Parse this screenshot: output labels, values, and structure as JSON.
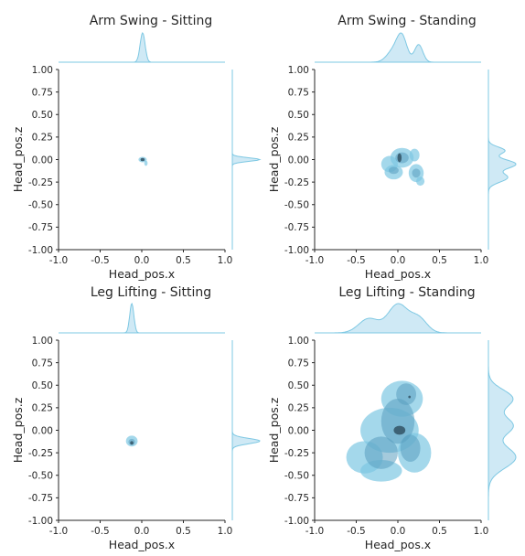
{
  "chart_data": [
    {
      "type": "kde-joint",
      "title": "Arm Swing - Sitting",
      "xlabel": "Head_pos.x",
      "ylabel": "Head_pos.z",
      "xlim": [
        -1.0,
        1.0
      ],
      "ylim": [
        -1.0,
        1.0
      ],
      "xticks": [
        "-1.0",
        "-0.5",
        "0.0",
        "0.5",
        "1.0"
      ],
      "yticks": [
        "1.00",
        "0.75",
        "0.50",
        "0.25",
        "0.00",
        "-0.25",
        "-0.50",
        "-0.75",
        "-1.00"
      ],
      "grid": false,
      "color": "#7ec8e3",
      "dark_color": "#3a5d70",
      "regions": [
        {
          "cx": 0.01,
          "cy": 0.0,
          "rx": 0.05,
          "ry": 0.03,
          "level": 1
        },
        {
          "cx": 0.05,
          "cy": -0.04,
          "rx": 0.02,
          "ry": 0.03,
          "level": 1
        },
        {
          "cx": 0.01,
          "cy": 0.0,
          "rx": 0.025,
          "ry": 0.018,
          "level": 3
        }
      ],
      "marginal_x": [
        {
          "mu": 0.01,
          "sigma": 0.03,
          "w": 1.0
        }
      ],
      "marginal_y": [
        {
          "mu": 0.0,
          "sigma": 0.02,
          "w": 1.0
        }
      ]
    },
    {
      "type": "kde-joint",
      "title": "Arm Swing - Standing",
      "xlabel": "Head_pos.x",
      "ylabel": "Head_pos.z",
      "xlim": [
        -1.0,
        1.0
      ],
      "ylim": [
        -1.0,
        1.0
      ],
      "xticks": [
        "-1.0",
        "-0.5",
        "0.0",
        "0.5",
        "1.0"
      ],
      "yticks": [
        "1.00",
        "0.75",
        "0.50",
        "0.25",
        "0.00",
        "-0.25",
        "-0.50",
        "-0.75",
        "-1.00"
      ],
      "grid": false,
      "color": "#7ec8e3",
      "dark_color": "#3a5d70",
      "regions": [
        {
          "cx": 0.05,
          "cy": 0.02,
          "rx": 0.14,
          "ry": 0.11,
          "level": 1
        },
        {
          "cx": -0.1,
          "cy": -0.05,
          "rx": 0.1,
          "ry": 0.09,
          "level": 1
        },
        {
          "cx": 0.22,
          "cy": -0.15,
          "rx": 0.09,
          "ry": 0.1,
          "level": 1
        },
        {
          "cx": -0.05,
          "cy": -0.14,
          "rx": 0.11,
          "ry": 0.08,
          "level": 1
        },
        {
          "cx": 0.27,
          "cy": -0.24,
          "rx": 0.05,
          "ry": 0.05,
          "level": 1
        },
        {
          "cx": 0.2,
          "cy": 0.05,
          "rx": 0.06,
          "ry": 0.07,
          "level": 1
        },
        {
          "cx": 0.05,
          "cy": 0.02,
          "rx": 0.08,
          "ry": 0.06,
          "level": 2
        },
        {
          "cx": -0.05,
          "cy": -0.12,
          "rx": 0.06,
          "ry": 0.04,
          "level": 2
        },
        {
          "cx": 0.22,
          "cy": -0.15,
          "rx": 0.05,
          "ry": 0.05,
          "level": 2
        },
        {
          "cx": 0.02,
          "cy": 0.02,
          "rx": 0.025,
          "ry": 0.05,
          "level": 3
        }
      ],
      "marginal_x": [
        {
          "mu": -0.05,
          "sigma": 0.08,
          "w": 0.5
        },
        {
          "mu": 0.05,
          "sigma": 0.06,
          "w": 1.0
        },
        {
          "mu": 0.25,
          "sigma": 0.05,
          "w": 0.75
        }
      ],
      "marginal_y": [
        {
          "mu": 0.1,
          "sigma": 0.04,
          "w": 0.6
        },
        {
          "mu": -0.05,
          "sigma": 0.05,
          "w": 1.0
        },
        {
          "mu": -0.2,
          "sigma": 0.05,
          "w": 0.7
        }
      ]
    },
    {
      "type": "kde-joint",
      "title": "Leg Lifting - Sitting",
      "xlabel": "Head_pos.x",
      "ylabel": "Head_pos.z",
      "xlim": [
        -1.0,
        1.0
      ],
      "ylim": [
        -1.0,
        1.0
      ],
      "xticks": [
        "-1.0",
        "-0.5",
        "0.0",
        "0.5",
        "1.0"
      ],
      "yticks": [
        "1.00",
        "0.75",
        "0.50",
        "0.25",
        "0.00",
        "-0.25",
        "-0.50",
        "-0.75",
        "-1.00"
      ],
      "grid": false,
      "color": "#7ec8e3",
      "dark_color": "#3a5d70",
      "regions": [
        {
          "cx": -0.12,
          "cy": -0.12,
          "rx": 0.07,
          "ry": 0.06,
          "level": 1
        },
        {
          "cx": -0.12,
          "cy": -0.13,
          "rx": 0.04,
          "ry": 0.035,
          "level": 2
        },
        {
          "cx": -0.12,
          "cy": -0.14,
          "rx": 0.02,
          "ry": 0.02,
          "level": 3
        }
      ],
      "marginal_x": [
        {
          "mu": -0.12,
          "sigma": 0.025,
          "w": 1.0
        }
      ],
      "marginal_y": [
        {
          "mu": -0.12,
          "sigma": 0.03,
          "w": 1.0
        }
      ]
    },
    {
      "type": "kde-joint",
      "title": "Leg Lifting - Standing",
      "xlabel": "Head_pos.x",
      "ylabel": "Head_pos.z",
      "xlim": [
        -1.0,
        1.0
      ],
      "ylim": [
        -1.0,
        1.0
      ],
      "xticks": [
        "-1.0",
        "-0.5",
        "0.0",
        "0.5",
        "1.0"
      ],
      "yticks": [
        "1.00",
        "0.75",
        "0.50",
        "0.25",
        "0.00",
        "-0.25",
        "-0.50",
        "-0.75",
        "-1.00"
      ],
      "grid": false,
      "color": "#7ec8e3",
      "dark_color": "#3a5d70",
      "regions": [
        {
          "cx": 0.05,
          "cy": 0.35,
          "rx": 0.25,
          "ry": 0.2,
          "level": 1
        },
        {
          "cx": -0.1,
          "cy": 0.0,
          "rx": 0.35,
          "ry": 0.25,
          "level": 1
        },
        {
          "cx": -0.4,
          "cy": -0.3,
          "rx": 0.22,
          "ry": 0.18,
          "level": 1
        },
        {
          "cx": 0.2,
          "cy": -0.25,
          "rx": 0.2,
          "ry": 0.22,
          "level": 1
        },
        {
          "cx": -0.2,
          "cy": -0.45,
          "rx": 0.25,
          "ry": 0.12,
          "level": 1
        },
        {
          "cx": 0.0,
          "cy": 0.1,
          "rx": 0.2,
          "ry": 0.25,
          "level": 2
        },
        {
          "cx": -0.2,
          "cy": -0.25,
          "rx": 0.2,
          "ry": 0.18,
          "level": 2
        },
        {
          "cx": 0.15,
          "cy": -0.2,
          "rx": 0.12,
          "ry": 0.15,
          "level": 2
        },
        {
          "cx": 0.1,
          "cy": 0.4,
          "rx": 0.12,
          "ry": 0.12,
          "level": 2
        },
        {
          "cx": 0.02,
          "cy": 0.0,
          "rx": 0.07,
          "ry": 0.05,
          "level": 3
        },
        {
          "cx": 0.14,
          "cy": 0.37,
          "rx": 0.015,
          "ry": 0.015,
          "level": 3
        }
      ],
      "marginal_x": [
        {
          "mu": -0.35,
          "sigma": 0.12,
          "w": 0.5
        },
        {
          "mu": 0.0,
          "sigma": 0.12,
          "w": 1.0
        },
        {
          "mu": 0.25,
          "sigma": 0.1,
          "w": 0.5
        }
      ],
      "marginal_y": [
        {
          "mu": 0.35,
          "sigma": 0.1,
          "w": 0.8
        },
        {
          "mu": 0.05,
          "sigma": 0.1,
          "w": 0.8
        },
        {
          "mu": -0.3,
          "sigma": 0.12,
          "w": 0.9
        }
      ]
    }
  ]
}
